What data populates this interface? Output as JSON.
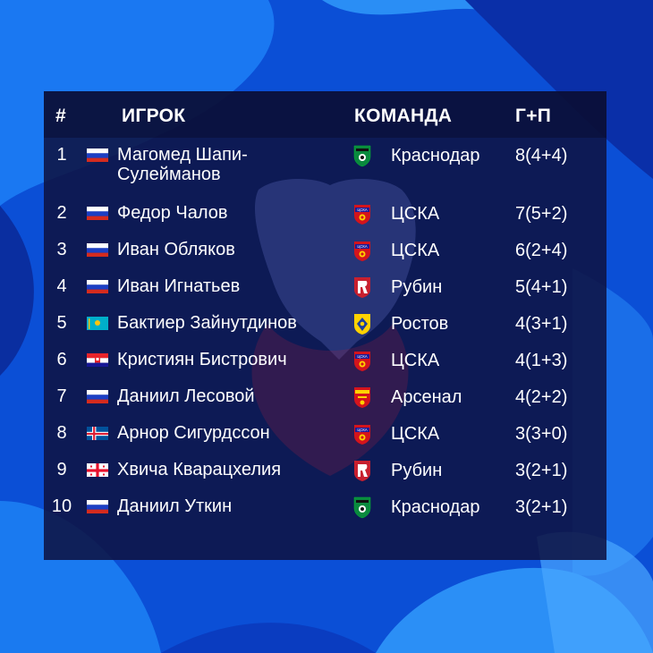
{
  "headers": {
    "num": "#",
    "player": "ИГРОК",
    "team": "КОМАНДА",
    "stat": "Г+П"
  },
  "rows": [
    {
      "num": "1",
      "name": "Магомед Шапи-Сулейманов",
      "flag": "russia",
      "team": "Краснодар",
      "logo": "krasnodar-logo",
      "score": "8(4+4)"
    },
    {
      "num": "2",
      "name": "Федор Чалов",
      "flag": "russia",
      "team": "ЦСКА",
      "logo": "cska-logo",
      "score": "7(5+2)"
    },
    {
      "num": "3",
      "name": "Иван Обляков",
      "flag": "russia",
      "team": "ЦСКА",
      "logo": "cska-logo",
      "score": "6(2+4)"
    },
    {
      "num": "4",
      "name": "Иван Игнатьев",
      "flag": "russia",
      "team": "Рубин",
      "logo": "rubin-logo",
      "score": "5(4+1)"
    },
    {
      "num": "5",
      "name": "Бактиер Зайнутдинов",
      "flag": "kazakhstan",
      "team": "Ростов",
      "logo": "rostov-logo",
      "score": "4(3+1)"
    },
    {
      "num": "6",
      "name": "Кристиян Бистрович",
      "flag": "croatia",
      "team": "ЦСКА",
      "logo": "cska-logo",
      "score": "4(1+3)"
    },
    {
      "num": "7",
      "name": "Даниил Лесовой",
      "flag": "russia",
      "team": "Арсенал",
      "logo": "arsenal-logo",
      "score": "4(2+2)"
    },
    {
      "num": "8",
      "name": "Арнор Сигурдссон",
      "flag": "iceland",
      "team": "ЦСКА",
      "logo": "cska-logo",
      "score": "3(3+0)"
    },
    {
      "num": "9",
      "name": "Хвича Кварацхелия",
      "flag": "georgia",
      "team": "Рубин",
      "logo": "rubin-logo",
      "score": "3(2+1)"
    },
    {
      "num": "10",
      "name": "Даниил Уткин",
      "flag": "russia",
      "team": "Краснодар",
      "logo": "krasnodar-logo",
      "score": "3(2+1)"
    }
  ],
  "colors": {
    "panel": "#0e1240",
    "background": "#0b4fd6",
    "accent_light": "#1f8cff"
  }
}
